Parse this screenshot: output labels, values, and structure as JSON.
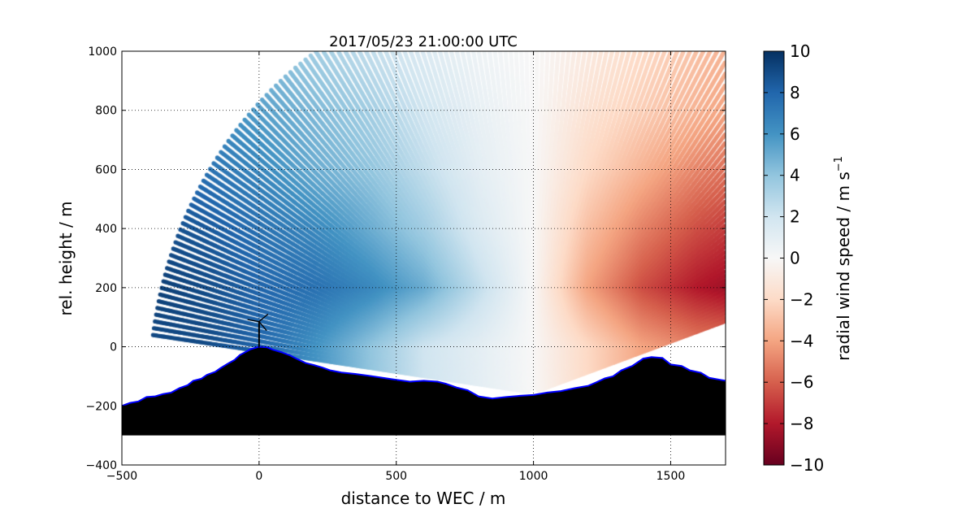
{
  "chart_data": {
    "type": "scatter",
    "title": "2017/05/23 21:00:00 UTC",
    "xlabel": "distance to WEC / m",
    "ylabel": "rel. height / m",
    "xlim": [
      -500,
      1700
    ],
    "ylim": [
      -400,
      1000
    ],
    "xticks": [
      -500,
      0,
      500,
      1000,
      1500
    ],
    "xtick_labels": [
      "−500",
      "0",
      "500",
      "1000",
      "1500"
    ],
    "yticks": [
      -400,
      -200,
      0,
      200,
      400,
      600,
      800,
      1000
    ],
    "ytick_labels": [
      "−400",
      "−200",
      "0",
      "200",
      "400",
      "600",
      "800",
      "1000"
    ],
    "grid": true,
    "colorbar": {
      "label": "radial wind speed / m s",
      "label_superscript": "−1",
      "range": [
        -10,
        10
      ],
      "ticks": [
        -10,
        -8,
        -6,
        -4,
        -2,
        0,
        2,
        4,
        6,
        8,
        10
      ],
      "tick_labels": [
        "−10",
        "−8",
        "−6",
        "−4",
        "−2",
        "0",
        "2",
        "4",
        "6",
        "8",
        "10"
      ],
      "colormap": "RdBu",
      "colormap_stops": [
        "#67001f",
        "#b2182b",
        "#d6604d",
        "#f4a582",
        "#fddbc7",
        "#f7f7f7",
        "#d1e5f0",
        "#92c5de",
        "#4393c3",
        "#2166ac",
        "#053061"
      ]
    },
    "scan": {
      "origin": [
        1000,
        -155
      ],
      "max_range_m": 1400,
      "elevation_range_deg": [
        18.6,
        172
      ]
    },
    "wind_field": {
      "x": [
        -400,
        -200,
        0,
        200,
        400,
        600,
        800,
        1000,
        1200,
        1400,
        1600,
        1700
      ],
      "y": [
        0,
        200,
        400,
        600,
        800,
        1000
      ],
      "values": [
        [
          9,
          9,
          8,
          6,
          4,
          2,
          1,
          0,
          -2,
          -4,
          -5,
          -5
        ],
        [
          9.5,
          9,
          8,
          7.5,
          6.5,
          5,
          2.5,
          0,
          -4,
          -6.5,
          -8,
          -8.5
        ],
        [
          9,
          8.5,
          7.5,
          6.5,
          5,
          3.5,
          1.5,
          0,
          -3,
          -5,
          -6.5,
          -7
        ],
        [
          8,
          7.5,
          6.5,
          5,
          4,
          2.5,
          1,
          0,
          -2,
          -3.5,
          -5,
          -5.5
        ],
        [
          7,
          6.5,
          5.5,
          4.5,
          3.5,
          2,
          0.8,
          0,
          -1.5,
          -2.5,
          -3.5,
          -4
        ],
        [
          6,
          5.5,
          4.5,
          3.5,
          2.5,
          1.5,
          0.5,
          0,
          -1,
          -2,
          -3,
          -3.5
        ]
      ]
    },
    "terrain": {
      "base": -300,
      "fill": "#000000",
      "outline": "#0000ff",
      "profile": [
        [
          -500,
          -200
        ],
        [
          -470,
          -190
        ],
        [
          -440,
          -185
        ],
        [
          -410,
          -170
        ],
        [
          -380,
          -168
        ],
        [
          -350,
          -160
        ],
        [
          -320,
          -155
        ],
        [
          -290,
          -140
        ],
        [
          -260,
          -130
        ],
        [
          -240,
          -115
        ],
        [
          -210,
          -108
        ],
        [
          -190,
          -95
        ],
        [
          -160,
          -85
        ],
        [
          -140,
          -72
        ],
        [
          -110,
          -55
        ],
        [
          -90,
          -45
        ],
        [
          -70,
          -28
        ],
        [
          -50,
          -18
        ],
        [
          -30,
          -8
        ],
        [
          0,
          0
        ],
        [
          30,
          -2
        ],
        [
          50,
          -10
        ],
        [
          80,
          -18
        ],
        [
          110,
          -28
        ],
        [
          140,
          -42
        ],
        [
          170,
          -55
        ],
        [
          200,
          -62
        ],
        [
          230,
          -70
        ],
        [
          260,
          -80
        ],
        [
          300,
          -87
        ],
        [
          350,
          -92
        ],
        [
          400,
          -98
        ],
        [
          450,
          -105
        ],
        [
          500,
          -112
        ],
        [
          550,
          -118
        ],
        [
          600,
          -115
        ],
        [
          650,
          -118
        ],
        [
          680,
          -125
        ],
        [
          720,
          -138
        ],
        [
          760,
          -147
        ],
        [
          800,
          -168
        ],
        [
          850,
          -175
        ],
        [
          900,
          -170
        ],
        [
          950,
          -166
        ],
        [
          1000,
          -163
        ],
        [
          1050,
          -155
        ],
        [
          1100,
          -150
        ],
        [
          1150,
          -140
        ],
        [
          1200,
          -132
        ],
        [
          1230,
          -120
        ],
        [
          1260,
          -107
        ],
        [
          1290,
          -100
        ],
        [
          1320,
          -80
        ],
        [
          1360,
          -65
        ],
        [
          1400,
          -40
        ],
        [
          1430,
          -35
        ],
        [
          1470,
          -38
        ],
        [
          1500,
          -60
        ],
        [
          1540,
          -65
        ],
        [
          1570,
          -80
        ],
        [
          1610,
          -88
        ],
        [
          1640,
          -105
        ],
        [
          1670,
          -110
        ],
        [
          1700,
          -115
        ]
      ]
    },
    "turbine": {
      "x": 0,
      "hub_height": 85,
      "rotor_radius": 40
    }
  }
}
